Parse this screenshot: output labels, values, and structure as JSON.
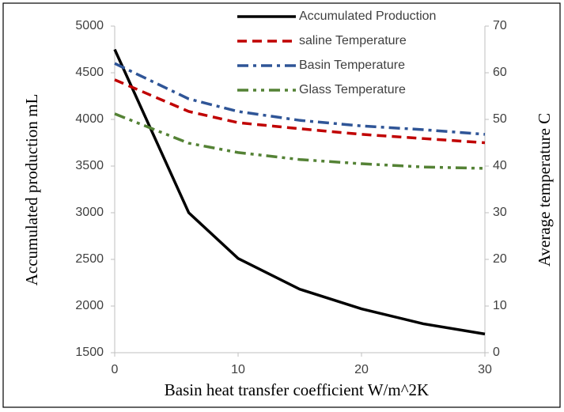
{
  "chart_data": {
    "type": "line",
    "x": [
      0,
      6,
      10,
      15,
      20,
      25,
      30
    ],
    "xlabel": "Basin heat transfer coefficient W/m^2K",
    "ylabel": "Accumulated production  mL",
    "y2label": "Average temperature  C",
    "xlim": [
      0,
      30
    ],
    "xticks": [
      0,
      10,
      20,
      30
    ],
    "ylim": [
      1500,
      5000
    ],
    "yticks": [
      1500,
      2000,
      2500,
      3000,
      3500,
      4000,
      4500,
      5000
    ],
    "y2lim": [
      0,
      70
    ],
    "y2ticks": [
      0,
      10,
      20,
      30,
      40,
      50,
      60,
      70
    ],
    "legend": "top-right",
    "series": [
      {
        "name": "Accumulated Production",
        "color": "#000000",
        "dash": "solid",
        "values": [
          4750,
          3000,
          2510,
          2180,
          1970,
          1810,
          1700
        ]
      },
      {
        "name": "saline Temperature",
        "color": "#c00000",
        "dash": "dash",
        "axis": "y2",
        "values": [
          58.5,
          51.7,
          49.3,
          48,
          46.8,
          45.9,
          45
        ]
      },
      {
        "name": "Basin  Temperature",
        "color": "#2f5597",
        "dash": "dashdot",
        "axis": "y2",
        "values": [
          62,
          54.4,
          51.7,
          49.8,
          48.6,
          47.8,
          46.8
        ]
      },
      {
        "name": "Glass Temperature",
        "color": "#548235",
        "dash": "dashdotdot",
        "axis": "y2",
        "values": [
          51.2,
          44.9,
          42.9,
          41.4,
          40.5,
          39.8,
          39.5
        ]
      }
    ]
  }
}
